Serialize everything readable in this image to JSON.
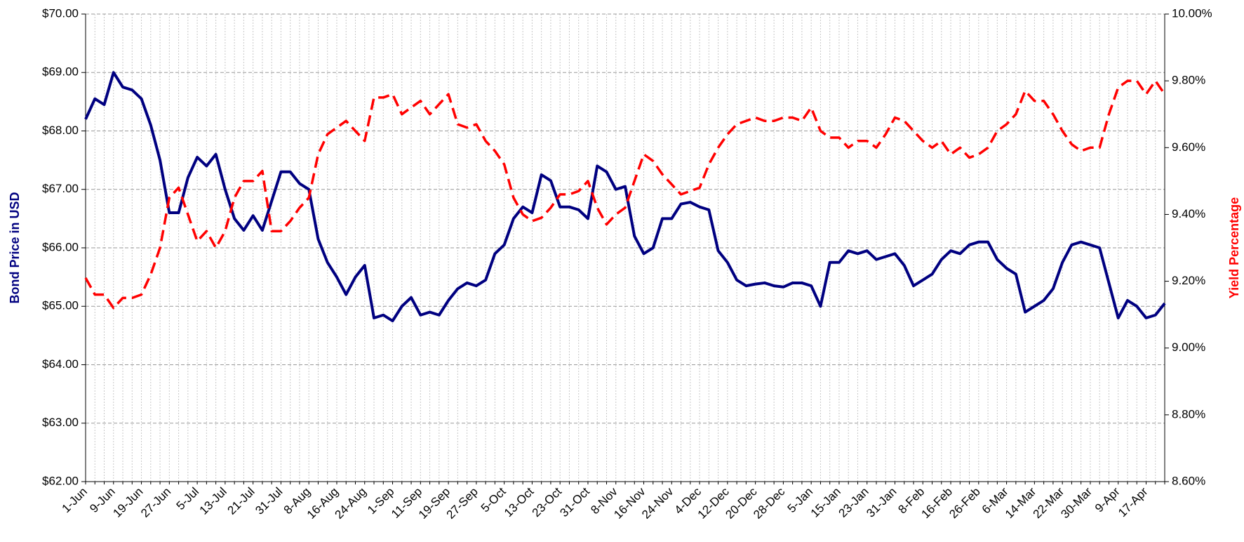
{
  "chart_data": {
    "type": "line",
    "ylabel": "Bond Price in USD",
    "y2label": "Yield Percentage",
    "ylabel_color": "#000080",
    "y2label_color": "#ff0000",
    "grid": true,
    "categories": [
      "1-Jun",
      null,
      null,
      "9-Jun",
      null,
      null,
      "19-Jun",
      null,
      null,
      "27-Jun",
      null,
      null,
      "5-Jul",
      null,
      null,
      "13-Jul",
      null,
      null,
      "21-Jul",
      null,
      null,
      "31-Jul",
      null,
      null,
      "8-Aug",
      null,
      null,
      "16-Aug",
      null,
      null,
      "24-Aug",
      null,
      null,
      "1-Sep",
      null,
      null,
      "11-Sep",
      null,
      null,
      "19-Sep",
      null,
      null,
      "27-Sep",
      null,
      null,
      "5-Oct",
      null,
      null,
      "13-Oct",
      null,
      null,
      "23-Oct",
      null,
      null,
      "31-Oct",
      null,
      null,
      "8-Nov",
      null,
      null,
      "16-Nov",
      null,
      null,
      "24-Nov",
      null,
      null,
      "4-Dec",
      null,
      null,
      "12-Dec",
      null,
      null,
      "20-Dec",
      null,
      null,
      "28-Dec",
      null,
      null,
      "5-Jan",
      null,
      null,
      "15-Jan",
      null,
      null,
      "23-Jan",
      null,
      null,
      "31-Jan",
      null,
      null,
      "8-Feb",
      null,
      null,
      "16-Feb",
      null,
      null,
      "26-Feb",
      null,
      null,
      "6-Mar",
      null,
      null,
      "14-Mar",
      null,
      null,
      "22-Mar",
      null,
      null,
      "30-Mar",
      null,
      null,
      "9-Apr",
      null,
      null,
      "17-Apr",
      null,
      null
    ],
    "series": [
      {
        "color": "#000080",
        "axis": "y",
        "dashed": false,
        "values": [
          68.2,
          68.55,
          68.45,
          69.0,
          68.75,
          68.7,
          68.55,
          68.1,
          67.5,
          66.6,
          66.6,
          67.2,
          67.55,
          67.4,
          67.6,
          67.0,
          66.5,
          66.3,
          66.55,
          66.3,
          66.8,
          67.3,
          67.3,
          67.1,
          67.0,
          66.15,
          65.75,
          65.5,
          65.2,
          65.5,
          65.7,
          64.8,
          64.85,
          64.75,
          65.0,
          65.15,
          64.85,
          64.9,
          64.85,
          65.1,
          65.3,
          65.4,
          65.35,
          65.45,
          65.9,
          66.05,
          66.5,
          66.7,
          66.6,
          67.25,
          67.15,
          66.7,
          66.7,
          66.65,
          66.5,
          67.4,
          67.3,
          67.0,
          67.05,
          66.2,
          65.9,
          66.0,
          66.5,
          66.5,
          66.75,
          66.78,
          66.7,
          66.65,
          65.95,
          65.75,
          65.45,
          65.35,
          65.38,
          65.4,
          65.35,
          65.33,
          65.4,
          65.4,
          65.35,
          65.0,
          65.75,
          65.75,
          65.95,
          65.9,
          65.95,
          65.8,
          65.85,
          65.9,
          65.7,
          65.35,
          65.45,
          65.55,
          65.8,
          65.95,
          65.9,
          66.05,
          66.1,
          66.1,
          65.8,
          65.65,
          65.55,
          64.9,
          65.0,
          65.1,
          65.3,
          65.75,
          66.05,
          66.1,
          66.05,
          66.0,
          65.4,
          64.8,
          65.1,
          65.0,
          64.8,
          64.85,
          65.05
        ]
      },
      {
        "color": "#ff0000",
        "axis": "y2",
        "dashed": true,
        "values": [
          9.21,
          9.16,
          9.16,
          9.12,
          9.15,
          9.15,
          9.16,
          9.22,
          9.3,
          9.45,
          9.48,
          9.4,
          9.32,
          9.35,
          9.3,
          9.35,
          9.45,
          9.5,
          9.5,
          9.53,
          9.35,
          9.35,
          9.38,
          9.42,
          9.45,
          9.58,
          9.64,
          9.66,
          9.68,
          9.65,
          9.62,
          9.75,
          9.75,
          9.76,
          9.7,
          9.72,
          9.74,
          9.7,
          9.73,
          9.76,
          9.67,
          9.66,
          9.67,
          9.62,
          9.59,
          9.55,
          9.45,
          9.4,
          9.38,
          9.39,
          9.42,
          9.46,
          9.46,
          9.47,
          9.5,
          9.42,
          9.37,
          9.4,
          9.42,
          9.5,
          9.58,
          9.56,
          9.52,
          9.49,
          9.46,
          9.47,
          9.48,
          9.55,
          9.6,
          9.64,
          9.67,
          9.68,
          9.69,
          9.68,
          9.68,
          9.69,
          9.69,
          9.68,
          9.72,
          9.65,
          9.63,
          9.63,
          9.6,
          9.62,
          9.62,
          9.6,
          9.64,
          9.69,
          9.68,
          9.65,
          9.62,
          9.6,
          9.62,
          9.58,
          9.6,
          9.57,
          9.58,
          9.6,
          9.65,
          9.67,
          9.7,
          9.77,
          9.74,
          9.74,
          9.7,
          9.65,
          9.61,
          9.59,
          9.6,
          9.6,
          9.7,
          9.78,
          9.8,
          9.8,
          9.76,
          9.8,
          9.76
        ]
      }
    ],
    "ylim": [
      62,
      70
    ],
    "yticks": [
      {
        "value": 62,
        "label": "$62.00"
      },
      {
        "value": 63,
        "label": "$63.00"
      },
      {
        "value": 64,
        "label": "$64.00"
      },
      {
        "value": 65,
        "label": "$65.00"
      },
      {
        "value": 66,
        "label": "$66.00"
      },
      {
        "value": 67,
        "label": "$67.00"
      },
      {
        "value": 68,
        "label": "$68.00"
      },
      {
        "value": 69,
        "label": "$69.00"
      },
      {
        "value": 70,
        "label": "$70.00"
      }
    ],
    "y2lim": [
      8.6,
      10.0
    ],
    "y2ticks": [
      {
        "value": 8.6,
        "label": "8.60%"
      },
      {
        "value": 8.8,
        "label": "8.80%"
      },
      {
        "value": 9.0,
        "label": "9.00%"
      },
      {
        "value": 9.2,
        "label": "9.20%"
      },
      {
        "value": 9.4,
        "label": "9.40%"
      },
      {
        "value": 9.6,
        "label": "9.60%"
      },
      {
        "value": 9.8,
        "label": "9.80%"
      },
      {
        "value": 10.0,
        "label": "10.00%"
      }
    ]
  }
}
